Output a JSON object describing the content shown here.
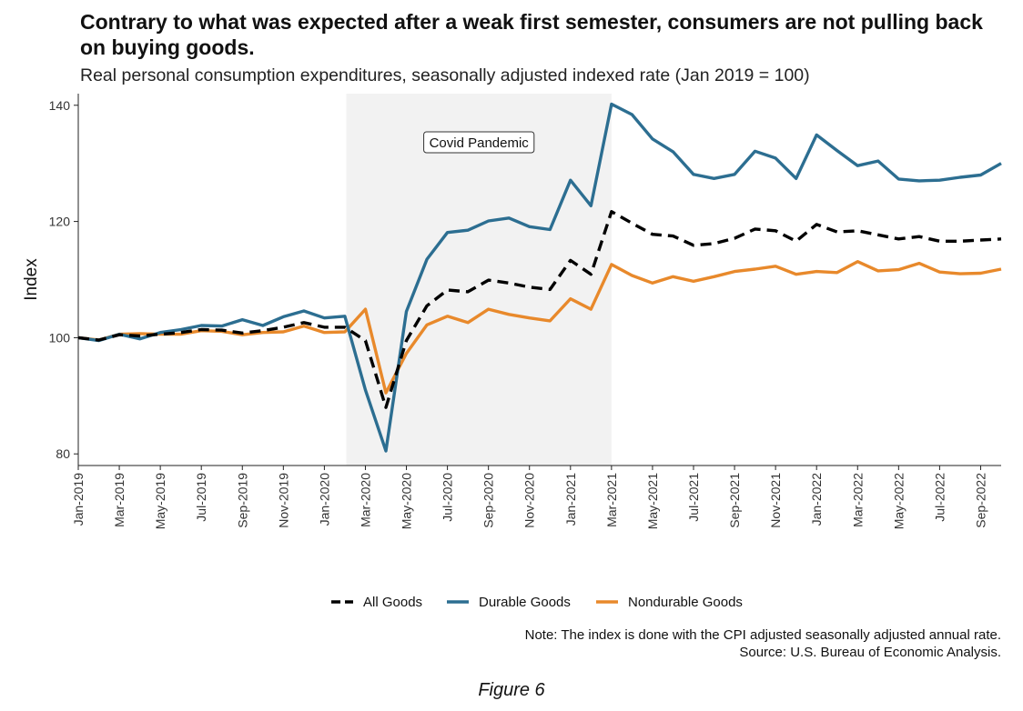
{
  "title": "Contrary to what was expected after a weak first semester, consumers are not pulling back on buying goods.",
  "subtitle": "Real personal consumption expenditures, seasonally adjusted indexed rate (Jan 2019 = 100)",
  "note_line1": "Note: The index is done with the CPI adjusted seasonally adjusted annual rate.",
  "note_line2": "Source: U.S. Bureau of Economic Analysis.",
  "figure_caption": "Figure 6",
  "colors": {
    "all_goods": "#000000",
    "durable": "#2c6e91",
    "nondurable": "#e8892b",
    "shade": "#f2f2f2"
  },
  "chart_data": {
    "type": "line",
    "ylabel": "Index",
    "ylim": [
      78,
      142
    ],
    "yticks": [
      80,
      100,
      120,
      140
    ],
    "grid": false,
    "legend_position": "bottom",
    "x_months": [
      "Jan-2019",
      "Feb-2019",
      "Mar-2019",
      "Apr-2019",
      "May-2019",
      "Jun-2019",
      "Jul-2019",
      "Aug-2019",
      "Sep-2019",
      "Oct-2019",
      "Nov-2019",
      "Dec-2019",
      "Jan-2020",
      "Feb-2020",
      "Mar-2020",
      "Apr-2020",
      "May-2020",
      "Jun-2020",
      "Jul-2020",
      "Aug-2020",
      "Sep-2020",
      "Oct-2020",
      "Nov-2020",
      "Dec-2020",
      "Jan-2021",
      "Feb-2021",
      "Mar-2021",
      "Apr-2021",
      "May-2021",
      "Jun-2021",
      "Jul-2021",
      "Aug-2021",
      "Sep-2021",
      "Oct-2021",
      "Nov-2021",
      "Dec-2021",
      "Jan-2022",
      "Feb-2022",
      "Mar-2022",
      "Apr-2022",
      "May-2022",
      "Jun-2022",
      "Jul-2022",
      "Aug-2022",
      "Sep-2022",
      "Oct-2022"
    ],
    "x_tick_labels": [
      "Jan-2019",
      "Mar-2019",
      "May-2019",
      "Jul-2019",
      "Sep-2019",
      "Nov-2019",
      "Jan-2020",
      "Mar-2020",
      "May-2020",
      "Jul-2020",
      "Sep-2020",
      "Nov-2020",
      "Jan-2021",
      "Mar-2021",
      "May-2021",
      "Jul-2021",
      "Sep-2021",
      "Nov-2021",
      "Jan-2022",
      "Mar-2022",
      "May-2022",
      "Jul-2022",
      "Sep-2022"
    ],
    "shaded_region": {
      "label": "Covid Pandemic",
      "start": "Feb-2020",
      "end": "Mar-2021"
    },
    "series": [
      {
        "name": "All Goods",
        "style": "dashed",
        "values": [
          100,
          99.6,
          100.5,
          100.3,
          100.6,
          100.9,
          101.4,
          101.3,
          100.8,
          101.2,
          101.8,
          102.6,
          101.8,
          101.8,
          99.5,
          88.0,
          99.5,
          105.5,
          108.2,
          107.9,
          109.9,
          109.4,
          108.7,
          108.3,
          113.3,
          110.9,
          121.7,
          119.7,
          117.8,
          117.5,
          115.9,
          116.2,
          117.1,
          118.7,
          118.4,
          116.6,
          119.5,
          118.2,
          118.4,
          117.7,
          117.0,
          117.4,
          116.6,
          116.6,
          116.8,
          117.0
        ]
      },
      {
        "name": "Durable Goods",
        "style": "solid",
        "values": [
          100,
          99.5,
          100.6,
          99.8,
          100.9,
          101.4,
          102.1,
          102.0,
          103.1,
          102.1,
          103.6,
          104.6,
          103.4,
          103.7,
          91.0,
          80.5,
          104.5,
          113.5,
          118.1,
          118.5,
          120.1,
          120.6,
          119.1,
          118.6,
          127.1,
          122.7,
          140.2,
          138.4,
          134.2,
          132.0,
          128.1,
          127.4,
          128.1,
          132.1,
          130.9,
          127.4,
          134.9,
          132.2,
          129.6,
          130.4,
          127.3,
          127.0,
          127.1,
          127.6,
          128.0,
          130.0
        ]
      },
      {
        "name": "Nondurable Goods",
        "style": "solid",
        "values": [
          100,
          99.6,
          100.6,
          100.7,
          100.6,
          100.6,
          101.2,
          101.1,
          100.5,
          100.9,
          101.0,
          102.0,
          100.9,
          101.0,
          104.9,
          90.5,
          97.3,
          102.2,
          103.7,
          102.6,
          104.9,
          104.0,
          103.4,
          102.9,
          106.7,
          104.9,
          112.6,
          110.7,
          109.4,
          110.5,
          109.7,
          110.5,
          111.4,
          111.8,
          112.3,
          110.9,
          111.4,
          111.2,
          113.1,
          111.5,
          111.7,
          112.8,
          111.3,
          111.0,
          111.1,
          111.8
        ]
      }
    ]
  }
}
